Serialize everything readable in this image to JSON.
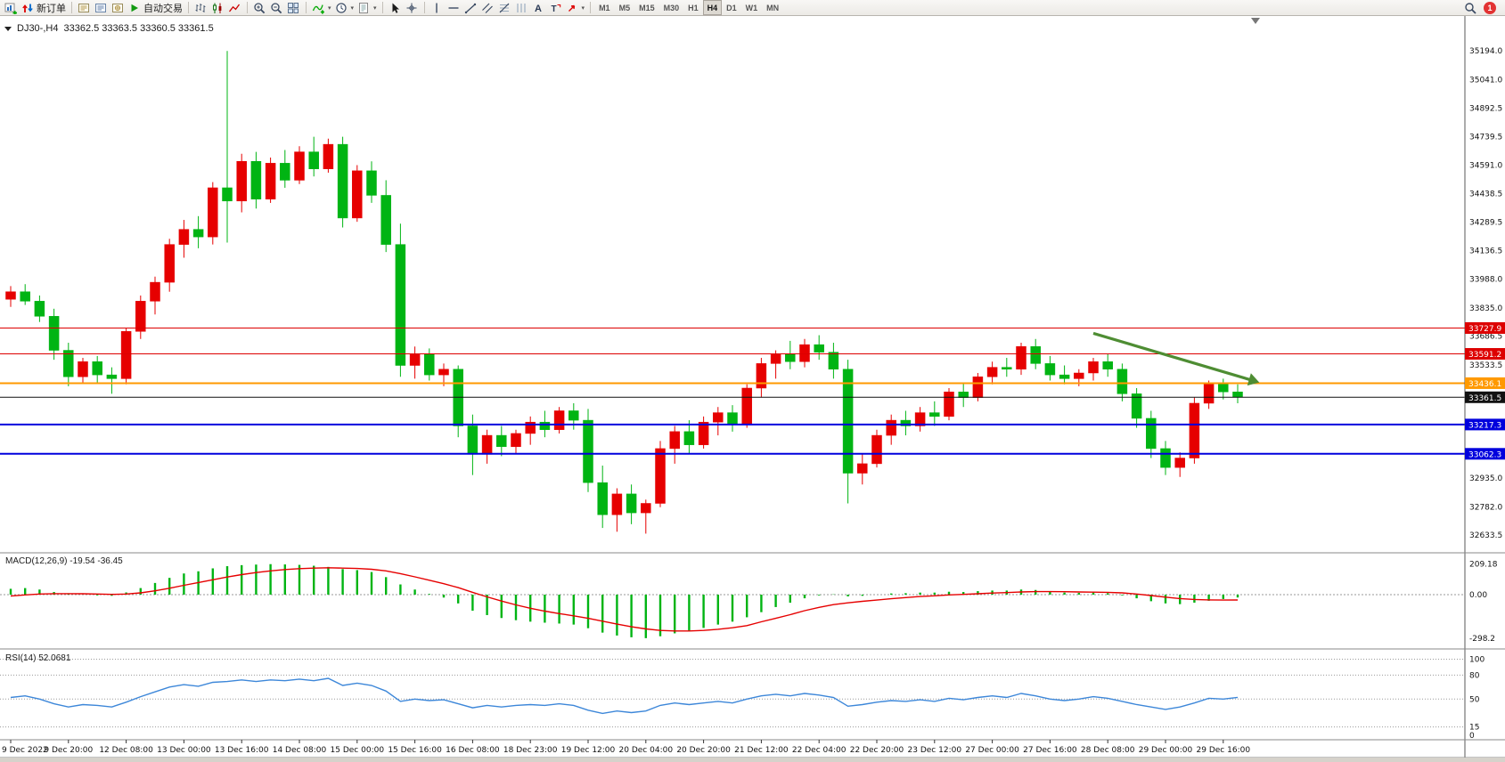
{
  "toolbar": {
    "new_order_label": "新订单",
    "autotrade_label": "自动交易",
    "timeframes": [
      "M1",
      "M5",
      "M15",
      "M30",
      "H1",
      "H4",
      "D1",
      "W1",
      "MN"
    ],
    "active_timeframe": "H4",
    "notification_count": "1"
  },
  "chart_header": {
    "symbol_period": "DJ30-,H4",
    "ohlc": "33362.5 33363.5 33360.5 33361.5"
  },
  "chart_data": {
    "type": "candlestick",
    "symbol": "DJ30-",
    "period": "H4",
    "ylim": [
      32633.5,
      35194.0
    ],
    "bull_color": "#e60000",
    "bear_color": "#00b413",
    "price_axis_ticks": [
      35194.0,
      35041.0,
      34892.5,
      34739.5,
      34591.0,
      34438.5,
      34289.5,
      34136.5,
      33988.0,
      33835.0,
      33686.5,
      33533.5,
      32935.0,
      32782.0,
      32633.5
    ],
    "price_lines": [
      {
        "value": 33727.9,
        "color": "#dd0000",
        "width": 1
      },
      {
        "value": 33591.2,
        "color": "#dd0000",
        "width": 1
      },
      {
        "value": 33436.1,
        "color": "#ff9900",
        "width": 2
      },
      {
        "value": 33361.5,
        "color": "#111111",
        "width": 1,
        "current": true
      },
      {
        "value": 33217.3,
        "color": "#0000dd",
        "width": 2
      },
      {
        "value": 33062.3,
        "color": "#0000dd",
        "width": 2
      }
    ],
    "ohlc": [
      [
        33880,
        33950,
        33840,
        33920
      ],
      [
        33920,
        33960,
        33850,
        33870
      ],
      [
        33870,
        33900,
        33760,
        33790
      ],
      [
        33790,
        33830,
        33560,
        33610
      ],
      [
        33610,
        33650,
        33420,
        33470
      ],
      [
        33470,
        33570,
        33440,
        33550
      ],
      [
        33550,
        33580,
        33440,
        33480
      ],
      [
        33480,
        33520,
        33380,
        33460
      ],
      [
        33460,
        33730,
        33430,
        33710
      ],
      [
        33710,
        33900,
        33670,
        33870
      ],
      [
        33870,
        34000,
        33800,
        33970
      ],
      [
        33970,
        34200,
        33920,
        34170
      ],
      [
        34170,
        34300,
        34100,
        34250
      ],
      [
        34250,
        34320,
        34150,
        34210
      ],
      [
        34210,
        34500,
        34170,
        34470
      ],
      [
        34470,
        35194,
        34180,
        34400
      ],
      [
        34400,
        34650,
        34340,
        34610
      ],
      [
        34610,
        34660,
        34360,
        34410
      ],
      [
        34410,
        34630,
        34390,
        34600
      ],
      [
        34600,
        34670,
        34470,
        34510
      ],
      [
        34510,
        34690,
        34490,
        34660
      ],
      [
        34660,
        34740,
        34530,
        34570
      ],
      [
        34570,
        34730,
        34550,
        34700
      ],
      [
        34700,
        34740,
        34260,
        34310
      ],
      [
        34310,
        34590,
        34290,
        34560
      ],
      [
        34560,
        34610,
        34390,
        34430
      ],
      [
        34430,
        34510,
        34130,
        34170
      ],
      [
        34170,
        34280,
        33470,
        33530
      ],
      [
        33530,
        33630,
        33460,
        33590
      ],
      [
        33590,
        33620,
        33450,
        33480
      ],
      [
        33480,
        33540,
        33420,
        33510
      ],
      [
        33510,
        33530,
        33150,
        33210
      ],
      [
        33210,
        33270,
        32950,
        33060
      ],
      [
        33060,
        33190,
        33010,
        33160
      ],
      [
        33160,
        33210,
        33050,
        33100
      ],
      [
        33100,
        33190,
        33060,
        33170
      ],
      [
        33170,
        33260,
        33110,
        33230
      ],
      [
        33230,
        33290,
        33150,
        33190
      ],
      [
        33190,
        33310,
        33170,
        33290
      ],
      [
        33290,
        33330,
        33190,
        33240
      ],
      [
        33240,
        33300,
        32860,
        32910
      ],
      [
        32910,
        33000,
        32670,
        32740
      ],
      [
        32740,
        32880,
        32650,
        32850
      ],
      [
        32850,
        32900,
        32690,
        32750
      ],
      [
        32750,
        32820,
        32640,
        32800
      ],
      [
        32800,
        33130,
        32780,
        33090
      ],
      [
        33090,
        33210,
        33010,
        33180
      ],
      [
        33180,
        33240,
        33060,
        33110
      ],
      [
        33110,
        33260,
        33090,
        33230
      ],
      [
        33230,
        33310,
        33160,
        33280
      ],
      [
        33280,
        33320,
        33180,
        33220
      ],
      [
        33220,
        33430,
        33200,
        33410
      ],
      [
        33410,
        33570,
        33360,
        33540
      ],
      [
        33540,
        33610,
        33460,
        33590
      ],
      [
        33590,
        33660,
        33510,
        33550
      ],
      [
        33550,
        33670,
        33520,
        33640
      ],
      [
        33640,
        33690,
        33560,
        33600
      ],
      [
        33600,
        33650,
        33460,
        33510
      ],
      [
        33510,
        33560,
        32800,
        32960
      ],
      [
        32960,
        33060,
        32900,
        33010
      ],
      [
        33010,
        33190,
        32990,
        33160
      ],
      [
        33160,
        33270,
        33110,
        33240
      ],
      [
        33240,
        33290,
        33160,
        33210
      ],
      [
        33210,
        33310,
        33180,
        33280
      ],
      [
        33280,
        33340,
        33210,
        33260
      ],
      [
        33260,
        33410,
        33240,
        33390
      ],
      [
        33390,
        33440,
        33310,
        33360
      ],
      [
        33360,
        33490,
        33340,
        33470
      ],
      [
        33470,
        33550,
        33430,
        33520
      ],
      [
        33520,
        33570,
        33470,
        33510
      ],
      [
        33510,
        33650,
        33480,
        33630
      ],
      [
        33630,
        33670,
        33510,
        33540
      ],
      [
        33540,
        33580,
        33450,
        33480
      ],
      [
        33480,
        33530,
        33430,
        33460
      ],
      [
        33460,
        33510,
        33420,
        33490
      ],
      [
        33490,
        33570,
        33450,
        33550
      ],
      [
        33550,
        33590,
        33470,
        33510
      ],
      [
        33510,
        33540,
        33340,
        33380
      ],
      [
        33380,
        33410,
        33200,
        33250
      ],
      [
        33250,
        33290,
        33040,
        33090
      ],
      [
        33090,
        33130,
        32950,
        32990
      ],
      [
        32990,
        33070,
        32940,
        33040
      ],
      [
        33040,
        33360,
        33010,
        33330
      ],
      [
        33330,
        33450,
        33300,
        33430
      ],
      [
        33430,
        33460,
        33350,
        33390
      ],
      [
        33390,
        33430,
        33330,
        33361.5
      ]
    ],
    "time_labels": [
      {
        "index": 0,
        "text": "9 Dec 2022"
      },
      {
        "index": 4,
        "text": "9 Dec 20:00"
      },
      {
        "index": 8,
        "text": "12 Dec 08:00"
      },
      {
        "index": 12,
        "text": "13 Dec 00:00"
      },
      {
        "index": 16,
        "text": "13 Dec 16:00"
      },
      {
        "index": 20,
        "text": "14 Dec 08:00"
      },
      {
        "index": 24,
        "text": "15 Dec 00:00"
      },
      {
        "index": 28,
        "text": "15 Dec 16:00"
      },
      {
        "index": 32,
        "text": "16 Dec 08:00"
      },
      {
        "index": 36,
        "text": "18 Dec 23:00"
      },
      {
        "index": 40,
        "text": "19 Dec 12:00"
      },
      {
        "index": 44,
        "text": "20 Dec 04:00"
      },
      {
        "index": 48,
        "text": "20 Dec 20:00"
      },
      {
        "index": 52,
        "text": "21 Dec 12:00"
      },
      {
        "index": 56,
        "text": "22 Dec 04:00"
      },
      {
        "index": 60,
        "text": "22 Dec 20:00"
      },
      {
        "index": 64,
        "text": "23 Dec 12:00"
      },
      {
        "index": 68,
        "text": "27 Dec 00:00"
      },
      {
        "index": 72,
        "text": "27 Dec 16:00"
      },
      {
        "index": 76,
        "text": "28 Dec 08:00"
      },
      {
        "index": 80,
        "text": "29 Dec 00:00"
      },
      {
        "index": 84,
        "text": "29 Dec 16:00"
      }
    ],
    "annotations": [
      {
        "type": "arrow",
        "from": {
          "index": 75,
          "price": 33700
        },
        "to": {
          "index": 86.5,
          "price": 33440
        },
        "color": "#4e8d33"
      }
    ],
    "indicators": [
      {
        "type": "macd",
        "label": "MACD(12,26,9) -19.54 -36.45",
        "hist_color": "#00b413",
        "signal_color": "#e60000",
        "axis_ticks": [
          {
            "v": 209.18,
            "t": "209.18"
          },
          {
            "v": 0,
            "t": "0.00"
          },
          {
            "v": -298.2,
            "t": "-298.2"
          }
        ],
        "histogram": [
          40,
          45,
          35,
          18,
          5,
          0,
          -5,
          -8,
          15,
          45,
          80,
          115,
          145,
          160,
          180,
          195,
          202,
          206,
          209,
          207,
          204,
          198,
          190,
          175,
          168,
          155,
          120,
          70,
          35,
          5,
          -20,
          -60,
          -110,
          -140,
          -160,
          -175,
          -185,
          -192,
          -198,
          -205,
          -230,
          -260,
          -280,
          -292,
          -298,
          -285,
          -265,
          -248,
          -228,
          -205,
          -185,
          -155,
          -120,
          -85,
          -55,
          -25,
          -5,
          2,
          -12,
          -8,
          0,
          8,
          10,
          14,
          14,
          20,
          18,
          24,
          28,
          28,
          35,
          32,
          22,
          14,
          12,
          14,
          10,
          -5,
          -25,
          -45,
          -60,
          -65,
          -55,
          -42,
          -30,
          -19.54
        ],
        "signal": [
          -10,
          -2,
          4,
          7,
          7,
          6,
          4,
          2,
          4,
          12,
          26,
          44,
          64,
          83,
          102,
          121,
          137,
          151,
          163,
          172,
          178,
          182,
          184,
          182,
          179,
          174,
          163,
          144,
          122,
          99,
          75,
          48,
          16,
          -15,
          -44,
          -70,
          -93,
          -113,
          -130,
          -145,
          -162,
          -182,
          -202,
          -220,
          -235,
          -245,
          -249,
          -249,
          -245,
          -237,
          -227,
          -212,
          -186,
          -162,
          -137,
          -110,
          -87,
          -68,
          -56,
          -46,
          -37,
          -28,
          -20,
          -13,
          -8,
          -2,
          2,
          6,
          11,
          14,
          18,
          21,
          21,
          20,
          18,
          17,
          16,
          12,
          4,
          -6,
          -17,
          -27,
          -33,
          -36,
          -37,
          -36.45
        ]
      },
      {
        "type": "rsi",
        "label": "RSI(14) 52.0681",
        "line_color": "#3d87d9",
        "levels": [
          100,
          80,
          50,
          15
        ],
        "axis_ticks": [
          {
            "v": 100,
            "t": "100"
          },
          {
            "v": 80,
            "t": "80"
          },
          {
            "v": 50,
            "t": "50"
          },
          {
            "v": 15,
            "t": "15"
          },
          {
            "v": 0,
            "t": "0"
          }
        ],
        "values": [
          52,
          54,
          50,
          44,
          40,
          43,
          42,
          40,
          46,
          53,
          59,
          65,
          68,
          66,
          71,
          72,
          74,
          72,
          74,
          73,
          75,
          73,
          76,
          67,
          70,
          67,
          60,
          47,
          50,
          48,
          49,
          44,
          39,
          42,
          40,
          42,
          43,
          42,
          44,
          42,
          36,
          32,
          35,
          33,
          35,
          42,
          45,
          43,
          45,
          47,
          45,
          50,
          54,
          56,
          54,
          57,
          55,
          52,
          41,
          43,
          46,
          48,
          47,
          49,
          47,
          51,
          49,
          52,
          54,
          52,
          57,
          54,
          50,
          48,
          50,
          53,
          51,
          47,
          43,
          40,
          37,
          40,
          45,
          51,
          50,
          52.07
        ]
      }
    ]
  }
}
